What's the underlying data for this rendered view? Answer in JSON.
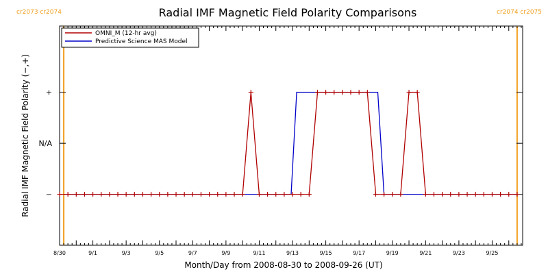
{
  "chart_data": {
    "type": "line",
    "title": "Radial IMF Magnetic Field Polarity Comparisons",
    "xlabel": "Month/Day from 2008-08-30 to 2008-09-26 (UT)",
    "ylabel": "Radial IMF Magnetic Field Polarity (−,+)",
    "xlim": [
      "2008-08-30",
      "2008-09-26 20:00"
    ],
    "ylim": [
      -2,
      2.3
    ],
    "y_tick_labels": [
      {
        "value": -1,
        "label": "−"
      },
      {
        "value": 0,
        "label": "N/A"
      },
      {
        "value": 1,
        "label": "+"
      }
    ],
    "x_tick_labels": [
      "8/30",
      "9/1",
      "9/3",
      "9/5",
      "9/7",
      "9/9",
      "9/11",
      "9/13",
      "9/15",
      "9/17",
      "9/19",
      "9/21",
      "9/23",
      "9/25"
    ],
    "x_tick_dates": [
      "2008-08-30",
      "2008-09-01",
      "2008-09-03",
      "2008-09-05",
      "2008-09-07",
      "2008-09-09",
      "2008-09-11",
      "2008-09-13",
      "2008-09-15",
      "2008-09-17",
      "2008-09-19",
      "2008-09-21",
      "2008-09-23",
      "2008-09-25"
    ],
    "carrington_markers": [
      {
        "date": "2008-08-30 06:00",
        "labels": [
          "cr2073",
          "cr2074"
        ],
        "side": "left"
      },
      {
        "date": "2008-09-26 12:00",
        "labels": [
          "cr2074",
          "cr2075"
        ],
        "side": "right"
      }
    ],
    "legend": {
      "position": "top-left",
      "boxed": true
    },
    "grid": false,
    "series": [
      {
        "name": "OMNI_M (12-hr avg)",
        "color": "#b00000",
        "marker": "+",
        "points": [
          [
            "2008-08-30 00:00",
            -1
          ],
          [
            "2008-08-30 12:00",
            -1
          ],
          [
            "2008-08-31 00:00",
            -1
          ],
          [
            "2008-08-31 12:00",
            -1
          ],
          [
            "2008-09-01 00:00",
            -1
          ],
          [
            "2008-09-01 12:00",
            -1
          ],
          [
            "2008-09-02 00:00",
            -1
          ],
          [
            "2008-09-02 12:00",
            -1
          ],
          [
            "2008-09-03 00:00",
            -1
          ],
          [
            "2008-09-03 12:00",
            -1
          ],
          [
            "2008-09-04 00:00",
            -1
          ],
          [
            "2008-09-04 12:00",
            -1
          ],
          [
            "2008-09-05 00:00",
            -1
          ],
          [
            "2008-09-05 12:00",
            -1
          ],
          [
            "2008-09-06 00:00",
            -1
          ],
          [
            "2008-09-06 12:00",
            -1
          ],
          [
            "2008-09-07 00:00",
            -1
          ],
          [
            "2008-09-07 12:00",
            -1
          ],
          [
            "2008-09-08 00:00",
            -1
          ],
          [
            "2008-09-08 12:00",
            -1
          ],
          [
            "2008-09-09 00:00",
            -1
          ],
          [
            "2008-09-09 12:00",
            -1
          ],
          [
            "2008-09-10 00:00",
            -1
          ],
          [
            "2008-09-10 12:00",
            1
          ],
          [
            "2008-09-11 00:00",
            -1
          ],
          [
            "2008-09-11 12:00",
            -1
          ],
          [
            "2008-09-12 00:00",
            -1
          ],
          [
            "2008-09-12 12:00",
            -1
          ],
          [
            "2008-09-13 00:00",
            -1
          ],
          [
            "2008-09-13 12:00",
            -1
          ],
          [
            "2008-09-14 00:00",
            -1
          ],
          [
            "2008-09-14 12:00",
            1
          ],
          [
            "2008-09-15 00:00",
            1
          ],
          [
            "2008-09-15 12:00",
            1
          ],
          [
            "2008-09-16 00:00",
            1
          ],
          [
            "2008-09-16 12:00",
            1
          ],
          [
            "2008-09-17 00:00",
            1
          ],
          [
            "2008-09-17 12:00",
            1
          ],
          [
            "2008-09-18 00:00",
            -1
          ],
          [
            "2008-09-18 12:00",
            -1
          ],
          [
            "2008-09-19 00:00",
            -1
          ],
          [
            "2008-09-19 12:00",
            -1
          ],
          [
            "2008-09-20 00:00",
            1
          ],
          [
            "2008-09-20 12:00",
            1
          ],
          [
            "2008-09-21 00:00",
            -1
          ],
          [
            "2008-09-21 12:00",
            -1
          ],
          [
            "2008-09-22 00:00",
            -1
          ],
          [
            "2008-09-22 12:00",
            -1
          ],
          [
            "2008-09-23 00:00",
            -1
          ],
          [
            "2008-09-23 12:00",
            -1
          ],
          [
            "2008-09-24 00:00",
            -1
          ],
          [
            "2008-09-24 12:00",
            -1
          ],
          [
            "2008-09-25 00:00",
            -1
          ],
          [
            "2008-09-25 12:00",
            -1
          ],
          [
            "2008-09-26 00:00",
            -1
          ],
          [
            "2008-09-26 12:00",
            -1
          ]
        ]
      },
      {
        "name": "Predictive Science MAS Model",
        "color": "#0000c8",
        "marker": "none",
        "points": [
          [
            "2008-08-30 06:00",
            -1
          ],
          [
            "2008-09-12 22:00",
            -1
          ],
          [
            "2008-09-13 06:00",
            1
          ],
          [
            "2008-09-18 03:00",
            1
          ],
          [
            "2008-09-18 12:00",
            -1
          ],
          [
            "2008-09-26 12:00",
            -1
          ]
        ]
      }
    ]
  },
  "colors": {
    "axis": "#000000",
    "carrington_line": "#f0a020",
    "carrington_text": "#f0a020"
  }
}
